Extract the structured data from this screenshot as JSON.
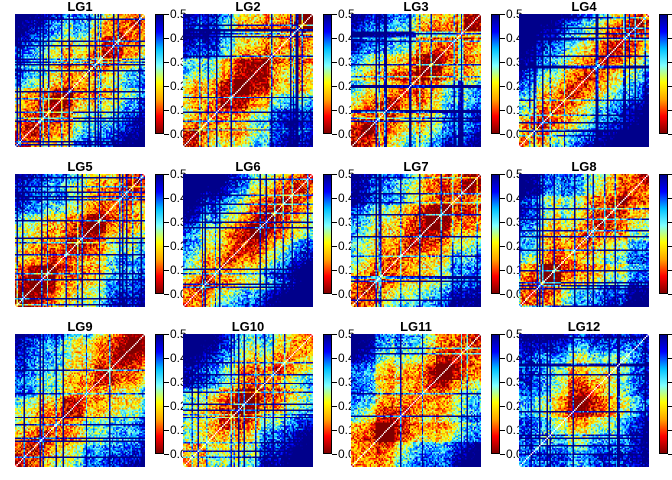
{
  "chart_data": {
    "type": "heatmap",
    "colormap": [
      "#7f0000",
      "#ff0000",
      "#ffa500",
      "#ffff00",
      "#7fffff",
      "#00bfff",
      "#0000ff",
      "#00008b"
    ],
    "colorbar_ticks": [
      "0.0",
      "0.1",
      "0.2",
      "0.3",
      "0.4",
      "0.5"
    ],
    "colorbar_range": [
      0,
      0.5
    ],
    "colorbar_ticks_clipped": [
      "0",
      "0",
      "0",
      "0",
      "0",
      "0"
    ],
    "panels": [
      {
        "title": "LG1",
        "pattern": "block-diagonal",
        "mean_value": 0.32
      },
      {
        "title": "LG2",
        "pattern": "block-diagonal",
        "mean_value": 0.24
      },
      {
        "title": "LG3",
        "pattern": "block-diagonal",
        "mean_value": 0.2
      },
      {
        "title": "LG4",
        "pattern": "diagonal-gradient",
        "mean_value": 0.3
      },
      {
        "title": "LG5",
        "pattern": "block-diagonal",
        "mean_value": 0.25
      },
      {
        "title": "LG6",
        "pattern": "diagonal-gradient",
        "mean_value": 0.28
      },
      {
        "title": "LG7",
        "pattern": "block-diagonal",
        "mean_value": 0.22
      },
      {
        "title": "LG8",
        "pattern": "block-diagonal",
        "mean_value": 0.27
      },
      {
        "title": "LG9",
        "pattern": "block-diagonal",
        "mean_value": 0.26
      },
      {
        "title": "LG10",
        "pattern": "block-diagonal",
        "mean_value": 0.27
      },
      {
        "title": "LG11",
        "pattern": "block-diagonal",
        "mean_value": 0.25
      },
      {
        "title": "LG12",
        "pattern": "central-block",
        "mean_value": 0.2
      }
    ]
  }
}
